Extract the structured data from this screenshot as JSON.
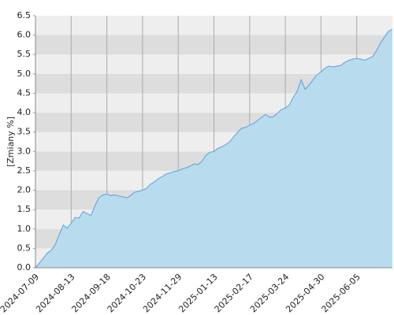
{
  "chart_data": {
    "type": "area",
    "y_label": "[Zmiany %]",
    "categories": [
      "2024-07-09",
      null,
      null,
      null,
      null,
      null,
      null,
      null,
      null,
      "2024-08-13",
      null,
      null,
      null,
      null,
      null,
      null,
      null,
      null,
      "2024-09-18",
      null,
      null,
      null,
      null,
      null,
      null,
      null,
      null,
      "2024-10-23",
      null,
      null,
      null,
      null,
      null,
      null,
      null,
      null,
      "2024-11-29",
      null,
      null,
      null,
      null,
      null,
      null,
      null,
      null,
      "2025-01-13",
      null,
      null,
      null,
      null,
      null,
      null,
      null,
      null,
      "2025-02-17",
      null,
      null,
      null,
      null,
      null,
      null,
      null,
      null,
      "2025-03-24",
      null,
      null,
      null,
      null,
      null,
      null,
      null,
      null,
      "2025-04-30",
      null,
      null,
      null,
      null,
      null,
      null,
      null,
      null,
      "2025-06-05",
      null,
      null,
      null,
      null,
      null,
      null,
      null,
      null,
      null
    ],
    "values": [
      0.0,
      0.12,
      0.25,
      0.38,
      0.45,
      0.6,
      0.85,
      1.1,
      1.02,
      1.15,
      1.3,
      1.28,
      1.45,
      1.4,
      1.35,
      1.6,
      1.8,
      1.88,
      1.9,
      1.86,
      1.88,
      1.85,
      1.83,
      1.8,
      1.86,
      1.95,
      1.97,
      2.0,
      2.05,
      2.15,
      2.22,
      2.3,
      2.35,
      2.42,
      2.45,
      2.48,
      2.5,
      2.55,
      2.58,
      2.62,
      2.68,
      2.66,
      2.75,
      2.9,
      2.98,
      3.0,
      3.08,
      3.12,
      3.18,
      3.25,
      3.38,
      3.5,
      3.6,
      3.62,
      3.68,
      3.72,
      3.8,
      3.88,
      3.95,
      3.88,
      3.9,
      3.98,
      4.08,
      4.12,
      4.2,
      4.4,
      4.55,
      4.85,
      4.6,
      4.72,
      4.85,
      4.98,
      5.05,
      5.15,
      5.2,
      5.18,
      5.2,
      5.22,
      5.3,
      5.35,
      5.38,
      5.4,
      5.38,
      5.35,
      5.4,
      5.45,
      5.6,
      5.8,
      5.95,
      6.1,
      6.15
    ],
    "color": "#5aa0e0",
    "fill": "#b8dcee",
    "ylim": [
      0,
      6.5
    ],
    "yticks": [
      {
        "value": 0,
        "label": "0.0"
      },
      0.5,
      {
        "value": 1,
        "label": "1.0"
      },
      1.5,
      {
        "value": 2,
        "label": "2.0"
      },
      2.5,
      {
        "value": 3,
        "label": "3.0"
      },
      3.5,
      {
        "value": 4,
        "label": "4.0"
      },
      4.5,
      {
        "value": 5,
        "label": "5.0"
      },
      5.5,
      {
        "value": 6,
        "label": "6.0"
      },
      6.5
    ],
    "grid": true
  }
}
